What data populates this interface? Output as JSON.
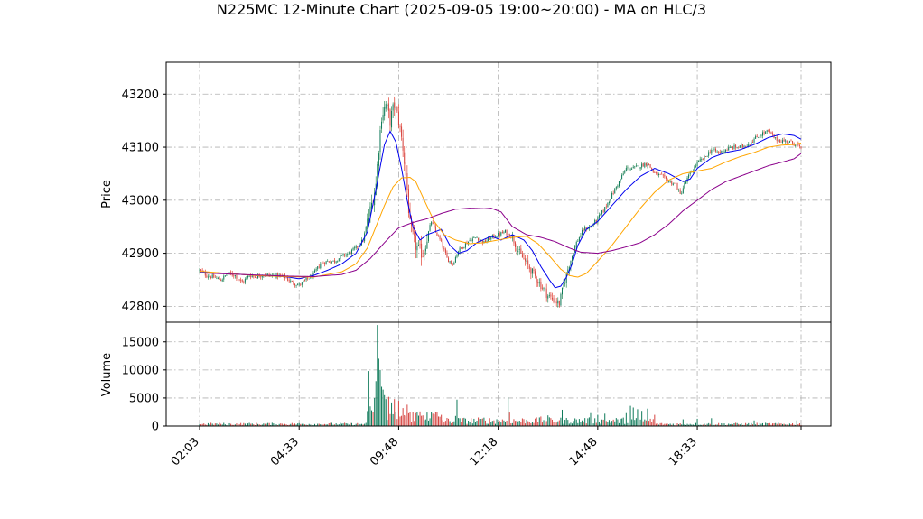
{
  "chart_data": {
    "type": "candlestick",
    "title": "N225MC 12-Minute Chart (2025-09-05 19:00~20:00) - MA on HLC/3",
    "price_panel": {
      "ylabel": "Price",
      "yticks": [
        42800,
        42900,
        43000,
        43100,
        43200
      ],
      "ylim": [
        42770,
        43260
      ],
      "price_path": [
        [
          0,
          42868
        ],
        [
          5,
          42858
        ],
        [
          10,
          42855
        ],
        [
          15,
          42850
        ],
        [
          20,
          42862
        ],
        [
          25,
          42858
        ],
        [
          30,
          42845
        ],
        [
          35,
          42858
        ],
        [
          40,
          42856
        ],
        [
          45,
          42860
        ],
        [
          50,
          42858
        ],
        [
          55,
          42858
        ],
        [
          60,
          42855
        ],
        [
          65,
          42845
        ],
        [
          70,
          42840
        ],
        [
          75,
          42850
        ],
        [
          80,
          42860
        ],
        [
          85,
          42880
        ],
        [
          90,
          42885
        ],
        [
          95,
          42885
        ],
        [
          100,
          42895
        ],
        [
          105,
          42900
        ],
        [
          110,
          42910
        ],
        [
          115,
          42925
        ],
        [
          120,
          42980
        ],
        [
          124,
          43030
        ],
        [
          126,
          43100
        ],
        [
          128,
          43160
        ],
        [
          131,
          43180
        ],
        [
          134,
          43150
        ],
        [
          137,
          43180
        ],
        [
          140,
          43150
        ],
        [
          143,
          43100
        ],
        [
          146,
          43020
        ],
        [
          148,
          42950
        ],
        [
          151,
          42920
        ],
        [
          154,
          42905
        ],
        [
          157,
          42900
        ],
        [
          160,
          42930
        ],
        [
          163,
          42960
        ],
        [
          166,
          42940
        ],
        [
          170,
          42920
        ],
        [
          174,
          42890
        ],
        [
          178,
          42880
        ],
        [
          182,
          42905
        ],
        [
          186,
          42915
        ],
        [
          190,
          42925
        ],
        [
          195,
          42930
        ],
        [
          200,
          42920
        ],
        [
          205,
          42930
        ],
        [
          210,
          42935
        ],
        [
          215,
          42940
        ],
        [
          220,
          42930
        ],
        [
          225,
          42900
        ],
        [
          230,
          42880
        ],
        [
          235,
          42860
        ],
        [
          240,
          42840
        ],
        [
          245,
          42820
        ],
        [
          250,
          42810
        ],
        [
          253,
          42805
        ],
        [
          256,
          42840
        ],
        [
          260,
          42880
        ],
        [
          265,
          42920
        ],
        [
          270,
          42945
        ],
        [
          275,
          42950
        ],
        [
          280,
          42965
        ],
        [
          285,
          42985
        ],
        [
          290,
          43010
        ],
        [
          295,
          43035
        ],
        [
          300,
          43060
        ],
        [
          305,
          43060
        ],
        [
          310,
          43065
        ],
        [
          315,
          43070
        ],
        [
          320,
          43050
        ],
        [
          325,
          43045
        ],
        [
          330,
          43035
        ],
        [
          335,
          43030
        ],
        [
          338,
          43010
        ],
        [
          341,
          43030
        ],
        [
          345,
          43050
        ],
        [
          350,
          43070
        ],
        [
          355,
          43080
        ],
        [
          360,
          43095
        ],
        [
          365,
          43090
        ],
        [
          370,
          43095
        ],
        [
          375,
          43100
        ],
        [
          380,
          43100
        ],
        [
          385,
          43105
        ],
        [
          390,
          43115
        ],
        [
          395,
          43125
        ],
        [
          400,
          43130
        ],
        [
          405,
          43115
        ],
        [
          410,
          43112
        ],
        [
          415,
          43110
        ],
        [
          420,
          43105
        ],
        [
          423,
          43095
        ]
      ],
      "moving_averages": [
        {
          "color": "#0000ee",
          "points": [
            [
              0,
              42865
            ],
            [
              20,
              42862
            ],
            [
              40,
              42858
            ],
            [
              60,
              42856
            ],
            [
              70,
              42852
            ],
            [
              80,
              42858
            ],
            [
              90,
              42868
            ],
            [
              100,
              42880
            ],
            [
              110,
              42900
            ],
            [
              118,
              42940
            ],
            [
              124,
              43020
            ],
            [
              130,
              43105
            ],
            [
              134,
              43130
            ],
            [
              138,
              43110
            ],
            [
              142,
              43060
            ],
            [
              146,
              43000
            ],
            [
              150,
              42950
            ],
            [
              155,
              42925
            ],
            [
              160,
              42935
            ],
            [
              170,
              42945
            ],
            [
              176,
              42915
            ],
            [
              182,
              42900
            ],
            [
              188,
              42905
            ],
            [
              195,
              42920
            ],
            [
              205,
              42932
            ],
            [
              212,
              42925
            ],
            [
              220,
              42935
            ],
            [
              228,
              42925
            ],
            [
              234,
              42905
            ],
            [
              240,
              42875
            ],
            [
              246,
              42850
            ],
            [
              250,
              42835
            ],
            [
              254,
              42838
            ],
            [
              258,
              42855
            ],
            [
              262,
              42880
            ],
            [
              266,
              42915
            ],
            [
              272,
              42945
            ],
            [
              280,
              42960
            ],
            [
              290,
              42990
            ],
            [
              300,
              43020
            ],
            [
              310,
              43045
            ],
            [
              320,
              43060
            ],
            [
              330,
              43050
            ],
            [
              340,
              43035
            ],
            [
              345,
              43040
            ],
            [
              350,
              43060
            ],
            [
              360,
              43080
            ],
            [
              370,
              43090
            ],
            [
              380,
              43095
            ],
            [
              390,
              43105
            ],
            [
              400,
              43118
            ],
            [
              410,
              43125
            ],
            [
              418,
              43122
            ],
            [
              423,
              43115
            ]
          ]
        },
        {
          "color": "#ffa500",
          "points": [
            [
              0,
              42866
            ],
            [
              20,
              42862
            ],
            [
              40,
              42858
            ],
            [
              60,
              42856
            ],
            [
              80,
              42855
            ],
            [
              100,
              42865
            ],
            [
              110,
              42880
            ],
            [
              118,
              42910
            ],
            [
              124,
              42950
            ],
            [
              130,
              42990
            ],
            [
              136,
              43025
            ],
            [
              142,
              43042
            ],
            [
              148,
              43043
            ],
            [
              152,
              43035
            ],
            [
              158,
              43000
            ],
            [
              165,
              42960
            ],
            [
              172,
              42935
            ],
            [
              180,
              42925
            ],
            [
              190,
              42918
            ],
            [
              200,
              42920
            ],
            [
              210,
              42925
            ],
            [
              220,
              42930
            ],
            [
              230,
              42932
            ],
            [
              238,
              42918
            ],
            [
              246,
              42895
            ],
            [
              254,
              42870
            ],
            [
              260,
              42858
            ],
            [
              266,
              42855
            ],
            [
              272,
              42862
            ],
            [
              280,
              42885
            ],
            [
              290,
              42915
            ],
            [
              300,
              42950
            ],
            [
              310,
              42985
            ],
            [
              320,
              43015
            ],
            [
              330,
              43038
            ],
            [
              340,
              43050
            ],
            [
              350,
              43055
            ],
            [
              360,
              43060
            ],
            [
              370,
              43072
            ],
            [
              380,
              43082
            ],
            [
              390,
              43090
            ],
            [
              400,
              43100
            ],
            [
              410,
              43104
            ],
            [
              418,
              43105
            ],
            [
              423,
              43108
            ]
          ]
        },
        {
          "color": "#8b008b",
          "points": [
            [
              0,
              42863
            ],
            [
              20,
              42861
            ],
            [
              40,
              42859
            ],
            [
              60,
              42857
            ],
            [
              80,
              42856
            ],
            [
              100,
              42860
            ],
            [
              110,
              42868
            ],
            [
              120,
              42890
            ],
            [
              130,
              42920
            ],
            [
              140,
              42948
            ],
            [
              150,
              42958
            ],
            [
              160,
              42965
            ],
            [
              170,
              42975
            ],
            [
              180,
              42983
            ],
            [
              190,
              42985
            ],
            [
              200,
              42984
            ],
            [
              205,
              42985
            ],
            [
              212,
              42978
            ],
            [
              220,
              42950
            ],
            [
              230,
              42935
            ],
            [
              240,
              42930
            ],
            [
              250,
              42922
            ],
            [
              260,
              42910
            ],
            [
              268,
              42902
            ],
            [
              280,
              42900
            ],
            [
              290,
              42905
            ],
            [
              300,
              42912
            ],
            [
              310,
              42920
            ],
            [
              320,
              42935
            ],
            [
              330,
              42955
            ],
            [
              340,
              42980
            ],
            [
              350,
              43000
            ],
            [
              360,
              43020
            ],
            [
              370,
              43035
            ],
            [
              380,
              43045
            ],
            [
              390,
              43055
            ],
            [
              400,
              43065
            ],
            [
              410,
              43072
            ],
            [
              418,
              43078
            ],
            [
              423,
              43088
            ]
          ]
        }
      ]
    },
    "volume_panel": {
      "ylabel": "Volume",
      "yticks": [
        0,
        5000,
        10000,
        15000
      ],
      "ylim": [
        0,
        18500
      ],
      "spikes": [
        [
          119,
          9800
        ],
        [
          120,
          3500
        ],
        [
          121,
          2800
        ],
        [
          123,
          5000
        ],
        [
          124,
          8000
        ],
        [
          125,
          18000
        ],
        [
          126,
          12000
        ],
        [
          127,
          10000
        ],
        [
          128,
          7000
        ],
        [
          129,
          6500
        ],
        [
          130,
          5500
        ],
        [
          131,
          4800
        ],
        [
          133,
          5200
        ],
        [
          135,
          4200
        ],
        [
          137,
          4800
        ],
        [
          140,
          4500
        ],
        [
          143,
          3200
        ],
        [
          146,
          3800
        ],
        [
          150,
          2500
        ],
        [
          155,
          2600
        ],
        [
          160,
          2400
        ],
        [
          170,
          2000
        ],
        [
          180,
          1800
        ],
        [
          181,
          4700
        ],
        [
          200,
          1500
        ],
        [
          217,
          5100
        ],
        [
          218,
          2400
        ],
        [
          240,
          1700
        ],
        [
          245,
          1900
        ],
        [
          255,
          2900
        ],
        [
          275,
          2300
        ],
        [
          280,
          2000
        ],
        [
          285,
          2200
        ],
        [
          300,
          2300
        ],
        [
          303,
          3600
        ],
        [
          305,
          3300
        ],
        [
          308,
          3000
        ],
        [
          311,
          2700
        ],
        [
          315,
          3100
        ],
        [
          320,
          2000
        ],
        [
          340,
          1200
        ],
        [
          350,
          1300
        ],
        [
          360,
          1400
        ],
        [
          390,
          1000
        ],
        [
          420,
          1000
        ]
      ]
    },
    "x_tick_labels": [
      "02:03",
      "04:33",
      "09:48",
      "12:18",
      "14:48",
      "18:33"
    ],
    "x_tick_index": [
      0,
      70,
      140,
      210,
      280,
      350
    ],
    "n_bars": 424,
    "colors": {
      "up": "#0f7a5a",
      "down": "#d64541",
      "wick_up": "#2e8b57",
      "wick_down": "#e34234"
    }
  }
}
